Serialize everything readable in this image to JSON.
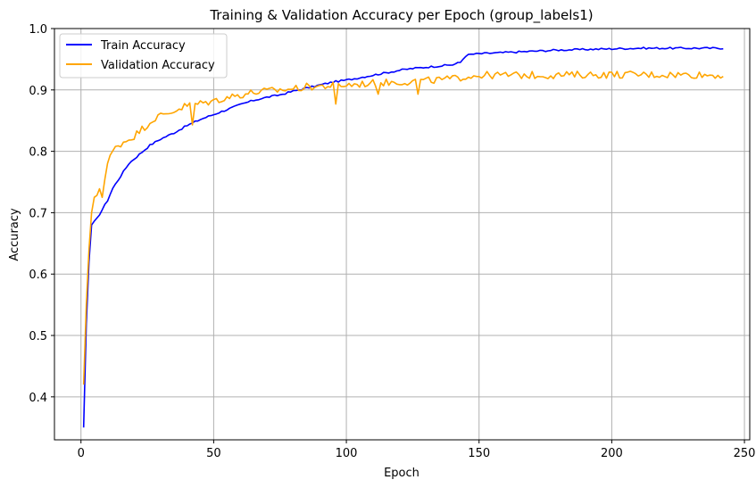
{
  "chart_data": {
    "type": "line",
    "title": "Training & Validation Accuracy per Epoch (group_labels1)",
    "xlabel": "Epoch",
    "ylabel": "Accuracy",
    "xlim": [
      -10,
      252
    ],
    "ylim": [
      0.33,
      1.0
    ],
    "xticks": [
      0,
      50,
      100,
      150,
      200,
      250
    ],
    "yticks": [
      0.4,
      0.5,
      0.6,
      0.7,
      0.8,
      0.9,
      1.0
    ],
    "grid": true,
    "legend_position": "top-left",
    "series": [
      {
        "name": "Train Accuracy",
        "color": "#0000ff",
        "anchors": [
          [
            1,
            0.35
          ],
          [
            2,
            0.52
          ],
          [
            3,
            0.62
          ],
          [
            4,
            0.68
          ],
          [
            6,
            0.69
          ],
          [
            8,
            0.705
          ],
          [
            10,
            0.72
          ],
          [
            12,
            0.74
          ],
          [
            15,
            0.76
          ],
          [
            18,
            0.78
          ],
          [
            22,
            0.795
          ],
          [
            26,
            0.81
          ],
          [
            30,
            0.82
          ],
          [
            35,
            0.83
          ],
          [
            40,
            0.842
          ],
          [
            45,
            0.852
          ],
          [
            50,
            0.86
          ],
          [
            55,
            0.868
          ],
          [
            60,
            0.876
          ],
          [
            65,
            0.883
          ],
          [
            70,
            0.888
          ],
          [
            75,
            0.892
          ],
          [
            80,
            0.898
          ],
          [
            85,
            0.903
          ],
          [
            90,
            0.908
          ],
          [
            95,
            0.913
          ],
          [
            100,
            0.916
          ],
          [
            105,
            0.92
          ],
          [
            110,
            0.924
          ],
          [
            115,
            0.928
          ],
          [
            120,
            0.932
          ],
          [
            125,
            0.935
          ],
          [
            130,
            0.937
          ],
          [
            135,
            0.939
          ],
          [
            140,
            0.941
          ],
          [
            143,
            0.945
          ],
          [
            145,
            0.956
          ],
          [
            147,
            0.958
          ],
          [
            150,
            0.959
          ],
          [
            160,
            0.961
          ],
          [
            170,
            0.963
          ],
          [
            180,
            0.965
          ],
          [
            190,
            0.966
          ],
          [
            200,
            0.967
          ],
          [
            210,
            0.968
          ],
          [
            220,
            0.968
          ],
          [
            230,
            0.968
          ],
          [
            242,
            0.968
          ]
        ],
        "count": 242,
        "noise": 0.0015
      },
      {
        "name": "Validation Accuracy",
        "color": "#ffa500",
        "anchors": [
          [
            1,
            0.42
          ],
          [
            2,
            0.55
          ],
          [
            3,
            0.64
          ],
          [
            4,
            0.7
          ],
          [
            5,
            0.72
          ],
          [
            7,
            0.74
          ],
          [
            8,
            0.73
          ],
          [
            10,
            0.78
          ],
          [
            12,
            0.8
          ],
          [
            14,
            0.81
          ],
          [
            16,
            0.815
          ],
          [
            18,
            0.82
          ],
          [
            20,
            0.825
          ],
          [
            24,
            0.84
          ],
          [
            28,
            0.855
          ],
          [
            32,
            0.86
          ],
          [
            36,
            0.868
          ],
          [
            40,
            0.875
          ],
          [
            45,
            0.878
          ],
          [
            50,
            0.882
          ],
          [
            55,
            0.888
          ],
          [
            60,
            0.892
          ],
          [
            65,
            0.896
          ],
          [
            70,
            0.898
          ],
          [
            75,
            0.9
          ],
          [
            80,
            0.902
          ],
          [
            85,
            0.905
          ],
          [
            90,
            0.906
          ],
          [
            95,
            0.907
          ],
          [
            100,
            0.908
          ],
          [
            110,
            0.911
          ],
          [
            120,
            0.913
          ],
          [
            130,
            0.915
          ],
          [
            140,
            0.918
          ],
          [
            145,
            0.922
          ],
          [
            150,
            0.924
          ],
          [
            160,
            0.924
          ],
          [
            170,
            0.924
          ],
          [
            180,
            0.924
          ],
          [
            190,
            0.925
          ],
          [
            200,
            0.925
          ],
          [
            210,
            0.925
          ],
          [
            220,
            0.925
          ],
          [
            230,
            0.925
          ],
          [
            242,
            0.924
          ]
        ],
        "count": 242,
        "noise": 0.006,
        "dips": [
          [
            8,
            0.725
          ],
          [
            42,
            0.843
          ],
          [
            96,
            0.877
          ],
          [
            112,
            0.893
          ],
          [
            127,
            0.893
          ]
        ]
      }
    ]
  }
}
